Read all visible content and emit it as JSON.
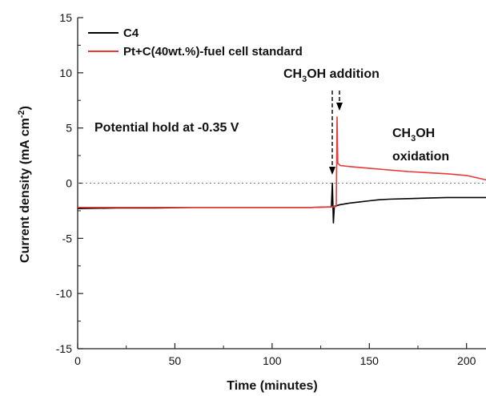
{
  "chart_data": {
    "type": "line",
    "xlabel": "Time (minutes)",
    "ylabel_parts": [
      "Current density (mA cm",
      "-2",
      ")"
    ],
    "xlim": [
      0,
      210
    ],
    "ylim": [
      -15,
      15
    ],
    "x_ticks": [
      0,
      50,
      100,
      150,
      200
    ],
    "y_ticks": [
      -15,
      -10,
      -5,
      0,
      5,
      10,
      15
    ],
    "grid": false,
    "legend_position": "top-left",
    "zero_reference_line": true,
    "series": [
      {
        "name": "C4",
        "color": "#000000",
        "x": [
          0,
          20,
          40,
          60,
          80,
          100,
          120,
          130.5,
          131,
          131.5,
          132,
          135,
          140,
          145,
          150,
          155,
          160,
          170,
          180,
          190,
          200,
          210
        ],
        "y": [
          -2.3,
          -2.25,
          -2.25,
          -2.2,
          -2.2,
          -2.2,
          -2.2,
          -2.15,
          0,
          -3.6,
          -2.1,
          -1.95,
          -1.8,
          -1.7,
          -1.6,
          -1.5,
          -1.45,
          -1.4,
          -1.35,
          -1.3,
          -1.3,
          -1.3
        ]
      },
      {
        "name": "Pt+C(40wt.%)-fuel cell standard",
        "color": "#e8393b",
        "x": [
          0,
          20,
          40,
          60,
          80,
          100,
          120,
          132,
          133,
          133.4,
          133.8,
          135,
          140,
          150,
          160,
          170,
          180,
          190,
          200,
          205,
          210
        ],
        "y": [
          -2.2,
          -2.2,
          -2.2,
          -2.2,
          -2.2,
          -2.2,
          -2.2,
          -2.15,
          -2.1,
          6.0,
          1.8,
          1.6,
          1.5,
          1.35,
          1.2,
          1.05,
          0.95,
          0.85,
          0.7,
          0.5,
          0.3
        ]
      }
    ],
    "annotations": {
      "hold": "Potential hold at -0.35 V",
      "addition": {
        "a": "CH",
        "sub": "3",
        "b": "OH addition"
      },
      "oxidation_line1": {
        "a": "CH",
        "sub": "3",
        "b": "OH"
      },
      "oxidation_line2": "oxidation"
    }
  }
}
